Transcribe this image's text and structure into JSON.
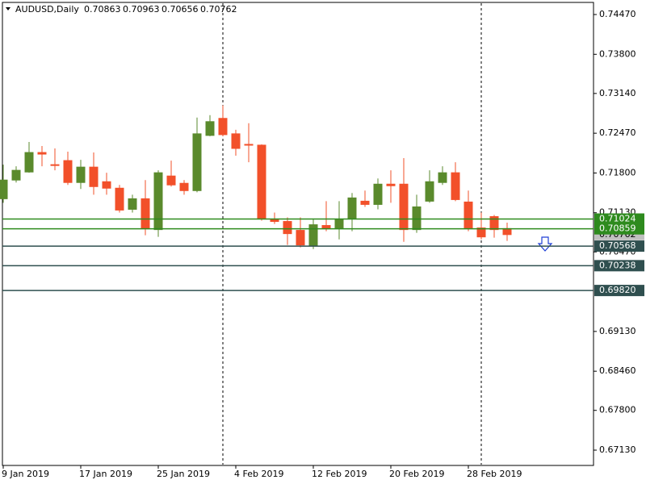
{
  "chart_data": {
    "type": "candlestick",
    "title": "AUDUSD,Daily",
    "categories": [
      "9 Jan 2019",
      null,
      null,
      null,
      null,
      null,
      "17 Jan 2019",
      null,
      null,
      null,
      null,
      null,
      "25 Jan 2019",
      null,
      null,
      null,
      null,
      null,
      "4 Feb 2019",
      null,
      null,
      null,
      null,
      null,
      "12 Feb 2019",
      null,
      null,
      null,
      null,
      null,
      "20 Feb 2019",
      null,
      null,
      null,
      null,
      null,
      "28 Feb 2019",
      null,
      null,
      null
    ],
    "open": [
      0.71366,
      0.71681,
      0.71817,
      0.72145,
      0.7194,
      0.72009,
      0.7164,
      0.71899,
      0.71653,
      0.71544,
      0.71188,
      0.71366,
      0.70846,
      0.71749,
      0.71626,
      0.71503,
      0.72433,
      0.7272,
      0.7246,
      0.72282,
      0.72269,
      0.71024,
      0.70983,
      0.70833,
      0.70573,
      0.70915,
      0.7086,
      0.71024,
      0.71325,
      0.7127,
      0.71612,
      0.71612,
      0.70846,
      0.71325,
      0.7164,
      0.71804,
      0.71311,
      0.70874,
      0.71065,
      0.70863
    ],
    "high": [
      0.7194,
      0.71913,
      0.72323,
      0.72255,
      0.72214,
      0.72159,
      0.72022,
      0.72145,
      0.71804,
      0.71599,
      0.71434,
      0.71681,
      0.71845,
      0.72009,
      0.71681,
      0.72733,
      0.72774,
      0.72939,
      0.72528,
      0.72638,
      0.72282,
      0.71134,
      0.71052,
      0.71052,
      0.71024,
      0.71325,
      0.71325,
      0.71462,
      0.71503,
      0.71708,
      0.71845,
      0.7205,
      0.71434,
      0.71845,
      0.71913,
      0.71981,
      0.71503,
      0.71134,
      0.71093,
      0.70963
    ],
    "low": [
      0.71298,
      0.7164,
      0.71804,
      0.71913,
      0.71845,
      0.71599,
      0.7153,
      0.71434,
      0.71434,
      0.71134,
      0.71134,
      0.70751,
      0.70723,
      0.71571,
      0.71434,
      0.71475,
      0.72419,
      0.72419,
      0.72091,
      0.71981,
      0.70997,
      0.70942,
      0.70587,
      0.70546,
      0.70518,
      0.70819,
      0.70682,
      0.70819,
      0.71229,
      0.71188,
      0.71298,
      0.70641,
      0.70792,
      0.71298,
      0.71599,
      0.71325,
      0.70819,
      0.70682,
      0.7071,
      0.70656
    ],
    "close": [
      0.71681,
      0.71845,
      0.72145,
      0.72118,
      0.71927,
      0.7164,
      0.71899,
      0.71571,
      0.71544,
      0.71175,
      0.71366,
      0.7086,
      0.71804,
      0.71599,
      0.71503,
      0.7246,
      0.72665,
      0.72446,
      0.72214,
      0.72269,
      0.71024,
      0.70983,
      0.70778,
      0.70587,
      0.70928,
      0.7086,
      0.71024,
      0.7138,
      0.7127,
      0.71612,
      0.71585,
      0.70846,
      0.71229,
      0.71653,
      0.71804,
      0.71352,
      0.7086,
      0.70723,
      0.70846,
      0.70762
    ],
    "up_color": "#5a8a2c",
    "down_color": "#f2502a",
    "ylim": [
      0.66872,
      0.74674
    ],
    "yticks": [
      {
        "value": 0.7447,
        "label": "0.74470"
      },
      {
        "value": 0.738,
        "label": "0.73800"
      },
      {
        "value": 0.7314,
        "label": "0.73140"
      },
      {
        "value": 0.7247,
        "label": "0.72470"
      },
      {
        "value": 0.718,
        "label": "0.71800"
      },
      {
        "value": 0.7113,
        "label": "0.71130"
      },
      {
        "value": 0.7047,
        "label": "0.70470"
      },
      {
        "value": 0.6913,
        "label": "0.69130"
      },
      {
        "value": 0.6846,
        "label": "0.68460"
      },
      {
        "value": 0.678,
        "label": "0.67800"
      },
      {
        "value": 0.6713,
        "label": "0.67130"
      }
    ],
    "levels": [
      {
        "value": 0.71024,
        "color": "#2e8b1e"
      },
      {
        "value": 0.70859,
        "color": "#2e8b1e"
      },
      {
        "value": 0.70568,
        "color": "#2f4f4f"
      },
      {
        "value": 0.70238,
        "color": "#2f4f4f"
      },
      {
        "value": 0.6982,
        "label": "0.69820",
        "color": "#2f4f4f"
      }
    ],
    "grid": false
  }
}
